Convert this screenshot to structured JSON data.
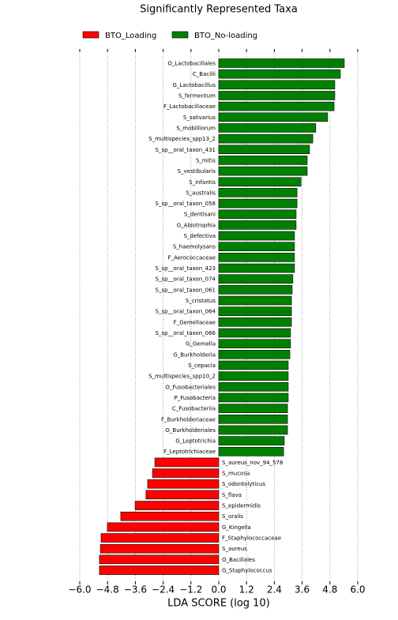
{
  "chart_data": {
    "type": "lefse_bar",
    "title": "Significantly Represented Taxa",
    "x_label": "LDA SCORE (log 10)",
    "categories": [
      "O_Lactobacillales",
      "C_Bacilli",
      "G_Lactobacillus",
      "S_fermentum",
      "F_Lactobacillaceae",
      "S_salivarius",
      "S_mobilliorum",
      "S_multispecies_spp13_2",
      "S_sp__oral_taxon_431",
      "S_mitis",
      "S_vestibularis",
      "S_infantis",
      "S_australis",
      "S_sp__oral_taxon_058",
      "S_dentisani",
      "G_Abiotrophia",
      "S_defectiva",
      "S_haemolysans",
      "F_Aerococcaceae",
      "S_sp__oral_taxon_423",
      "S_sp__oral_taxon_074",
      "S_sp__oral_taxon_061",
      "S_cristatus",
      "S_sp__oral_taxon_064",
      "F_Gemellaceae",
      "S_sp__oral_taxon_066",
      "G_Gemella",
      "G_Burkholderia",
      "S_cepacia",
      "S_multispecies_spp10_2",
      "O_Fusobacteriales",
      "P_Fusobacteria",
      "C_Fusobacteriia",
      "F_Burkholderiaceae",
      "O_Burkholderiales",
      "G_Leptotrichia",
      "F_Leptotrichiaceae",
      "S_aureus_nov_94_578",
      "S_mucosa",
      "S_odontolyticus",
      "S_flava",
      "S_epidermidis",
      "S_oralis",
      "G_Kingella",
      "F_Staphylococcaceae",
      "S_aureus",
      "O_Bacillales",
      "G_Staphylococcus"
    ],
    "series": [
      {
        "name": "BTO_Loading",
        "color": "#ff0000",
        "values": [
          null,
          null,
          null,
          null,
          null,
          null,
          null,
          null,
          null,
          null,
          null,
          null,
          null,
          null,
          null,
          null,
          null,
          null,
          null,
          null,
          null,
          null,
          null,
          null,
          null,
          null,
          null,
          null,
          null,
          null,
          null,
          null,
          null,
          null,
          null,
          null,
          null,
          -2.76,
          -2.86,
          -3.07,
          -3.14,
          -3.61,
          -4.23,
          -4.81,
          -5.08,
          -5.11,
          -5.15,
          -5.15
        ]
      },
      {
        "name": "BTO_No-loading",
        "color": "#008000",
        "values": [
          5.42,
          5.25,
          5.01,
          5.01,
          4.98,
          4.7,
          4.19,
          4.06,
          3.92,
          3.82,
          3.82,
          3.55,
          3.38,
          3.38,
          3.34,
          3.34,
          3.27,
          3.27,
          3.27,
          3.27,
          3.2,
          3.17,
          3.14,
          3.14,
          3.14,
          3.1,
          3.1,
          3.07,
          3.0,
          3.0,
          3.0,
          3.0,
          2.97,
          2.97,
          2.97,
          2.83,
          2.8,
          null,
          null,
          null,
          null,
          null,
          null,
          null,
          null,
          null,
          null,
          null
        ]
      }
    ],
    "xlim": [
      -6.0,
      6.0
    ],
    "xticks": [
      {
        "value": -6.0,
        "label": "−6.0"
      },
      {
        "value": -4.8,
        "label": "−4.8"
      },
      {
        "value": -3.6,
        "label": "−3.6"
      },
      {
        "value": -2.4,
        "label": "−2.4"
      },
      {
        "value": -1.2,
        "label": "−1.2"
      },
      {
        "value": 0,
        "label": "0.0"
      },
      {
        "value": 1.2,
        "label": "1.2"
      },
      {
        "value": 2.4,
        "label": "2.4"
      },
      {
        "value": 3.6,
        "label": "3.6"
      },
      {
        "value": 4.8,
        "label": "4.8"
      },
      {
        "value": 6.0,
        "label": "6.0"
      }
    ],
    "grid": true
  }
}
